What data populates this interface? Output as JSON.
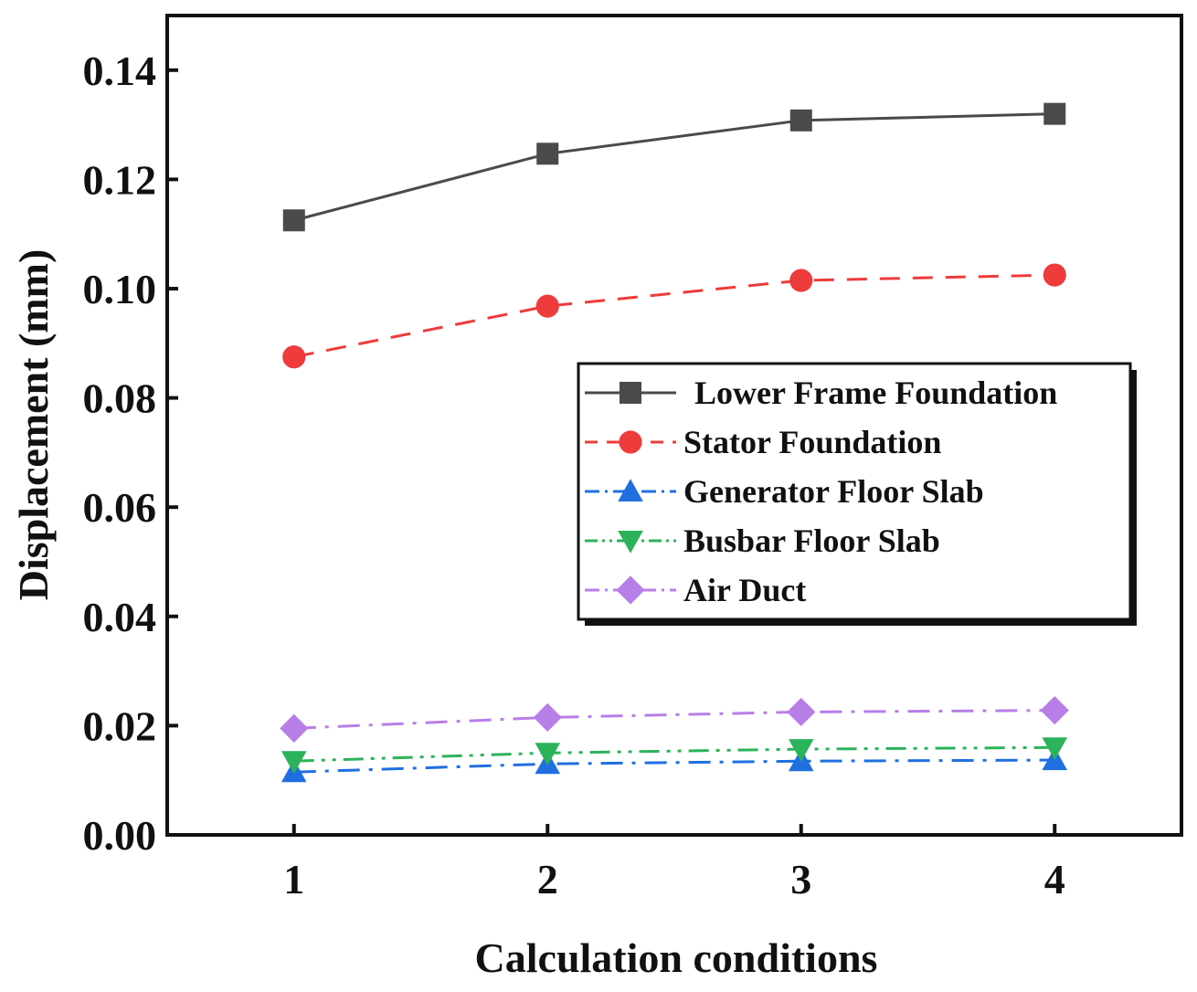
{
  "chart_data": {
    "type": "line",
    "title": "",
    "xlabel": "Calculation conditions",
    "ylabel": "Displacement (mm)",
    "x": [
      1,
      2,
      3,
      4
    ],
    "x_tick_labels": [
      "1",
      "2",
      "3",
      "4"
    ],
    "xlim": [
      0.5,
      4.5
    ],
    "ylim": [
      0,
      0.15
    ],
    "y_ticks": [
      0.0,
      0.02,
      0.04,
      0.06,
      0.08,
      0.1,
      0.12,
      0.14
    ],
    "y_tick_labels": [
      "0.00",
      "0.02",
      "0.04",
      "0.06",
      "0.08",
      "0.10",
      "0.12",
      "0.14"
    ],
    "grid": false,
    "legend_position": "center-right",
    "series": [
      {
        "name": "Lower Frame Foundation",
        "values": [
          0.1125,
          0.1247,
          0.1308,
          0.132
        ],
        "color": "#4a4a4a",
        "marker": "square",
        "dash": "solid"
      },
      {
        "name": "Stator Foundation",
        "values": [
          0.0875,
          0.0968,
          0.1015,
          0.1025
        ],
        "color": "#ee3b3b",
        "marker": "circle",
        "dash": "dash"
      },
      {
        "name": "Generator Floor Slab",
        "values": [
          0.0115,
          0.013,
          0.0135,
          0.0137
        ],
        "color": "#1f6fe0",
        "marker": "triangle-up",
        "dash": "dashdot"
      },
      {
        "name": "Busbar Floor Slab",
        "values": [
          0.0135,
          0.015,
          0.0157,
          0.016
        ],
        "color": "#2bb35a",
        "marker": "triangle-down",
        "dash": "dashdotdot"
      },
      {
        "name": "Air Duct",
        "values": [
          0.0195,
          0.0215,
          0.0225,
          0.0228
        ],
        "color": "#b87ee8",
        "marker": "diamond",
        "dash": "dashdot"
      }
    ]
  }
}
